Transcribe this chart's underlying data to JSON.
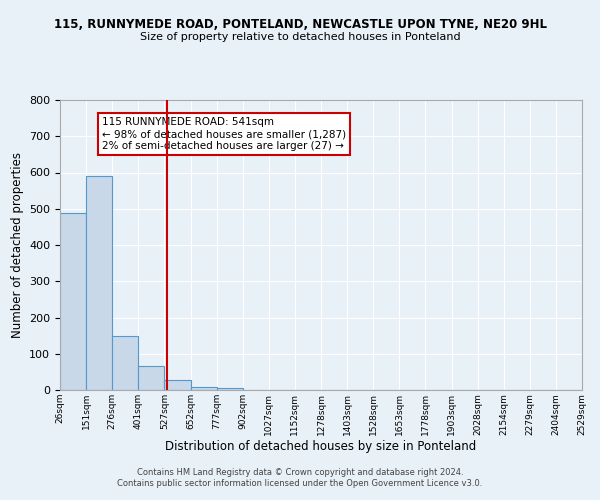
{
  "title": "115, RUNNYMEDE ROAD, PONTELAND, NEWCASTLE UPON TYNE, NE20 9HL",
  "subtitle": "Size of property relative to detached houses in Ponteland",
  "xlabel": "Distribution of detached houses by size in Ponteland",
  "ylabel": "Number of detached properties",
  "footer_line1": "Contains HM Land Registry data © Crown copyright and database right 2024.",
  "footer_line2": "Contains public sector information licensed under the Open Government Licence v3.0.",
  "bin_labels": [
    "26sqm",
    "151sqm",
    "276sqm",
    "401sqm",
    "527sqm",
    "652sqm",
    "777sqm",
    "902sqm",
    "1027sqm",
    "1152sqm",
    "1278sqm",
    "1403sqm",
    "1528sqm",
    "1653sqm",
    "1778sqm",
    "1903sqm",
    "2028sqm",
    "2154sqm",
    "2279sqm",
    "2404sqm",
    "2529sqm"
  ],
  "bar_heights": [
    487,
    590,
    150,
    65,
    28,
    8,
    5,
    0,
    0,
    0,
    0,
    0,
    0,
    0,
    0,
    0,
    0,
    0,
    0,
    0,
    0
  ],
  "bar_color": "#c8d8e8",
  "bar_edge_color": "#5599cc",
  "annotation_line1": "115 RUNNYMEDE ROAD: 541sqm",
  "annotation_line2": "← 98% of detached houses are smaller (1,287)",
  "annotation_line3": "2% of semi-detached houses are larger (27) →",
  "annotation_box_color": "#ffffff",
  "annotation_box_edge_color": "#cc0000",
  "red_line_color": "#cc0000",
  "ylim": [
    0,
    800
  ],
  "yticks": [
    0,
    100,
    200,
    300,
    400,
    500,
    600,
    700,
    800
  ],
  "background_color": "#e8f0f8",
  "grid_color": "#ffffff",
  "num_bins": 21,
  "bin_width": 1
}
